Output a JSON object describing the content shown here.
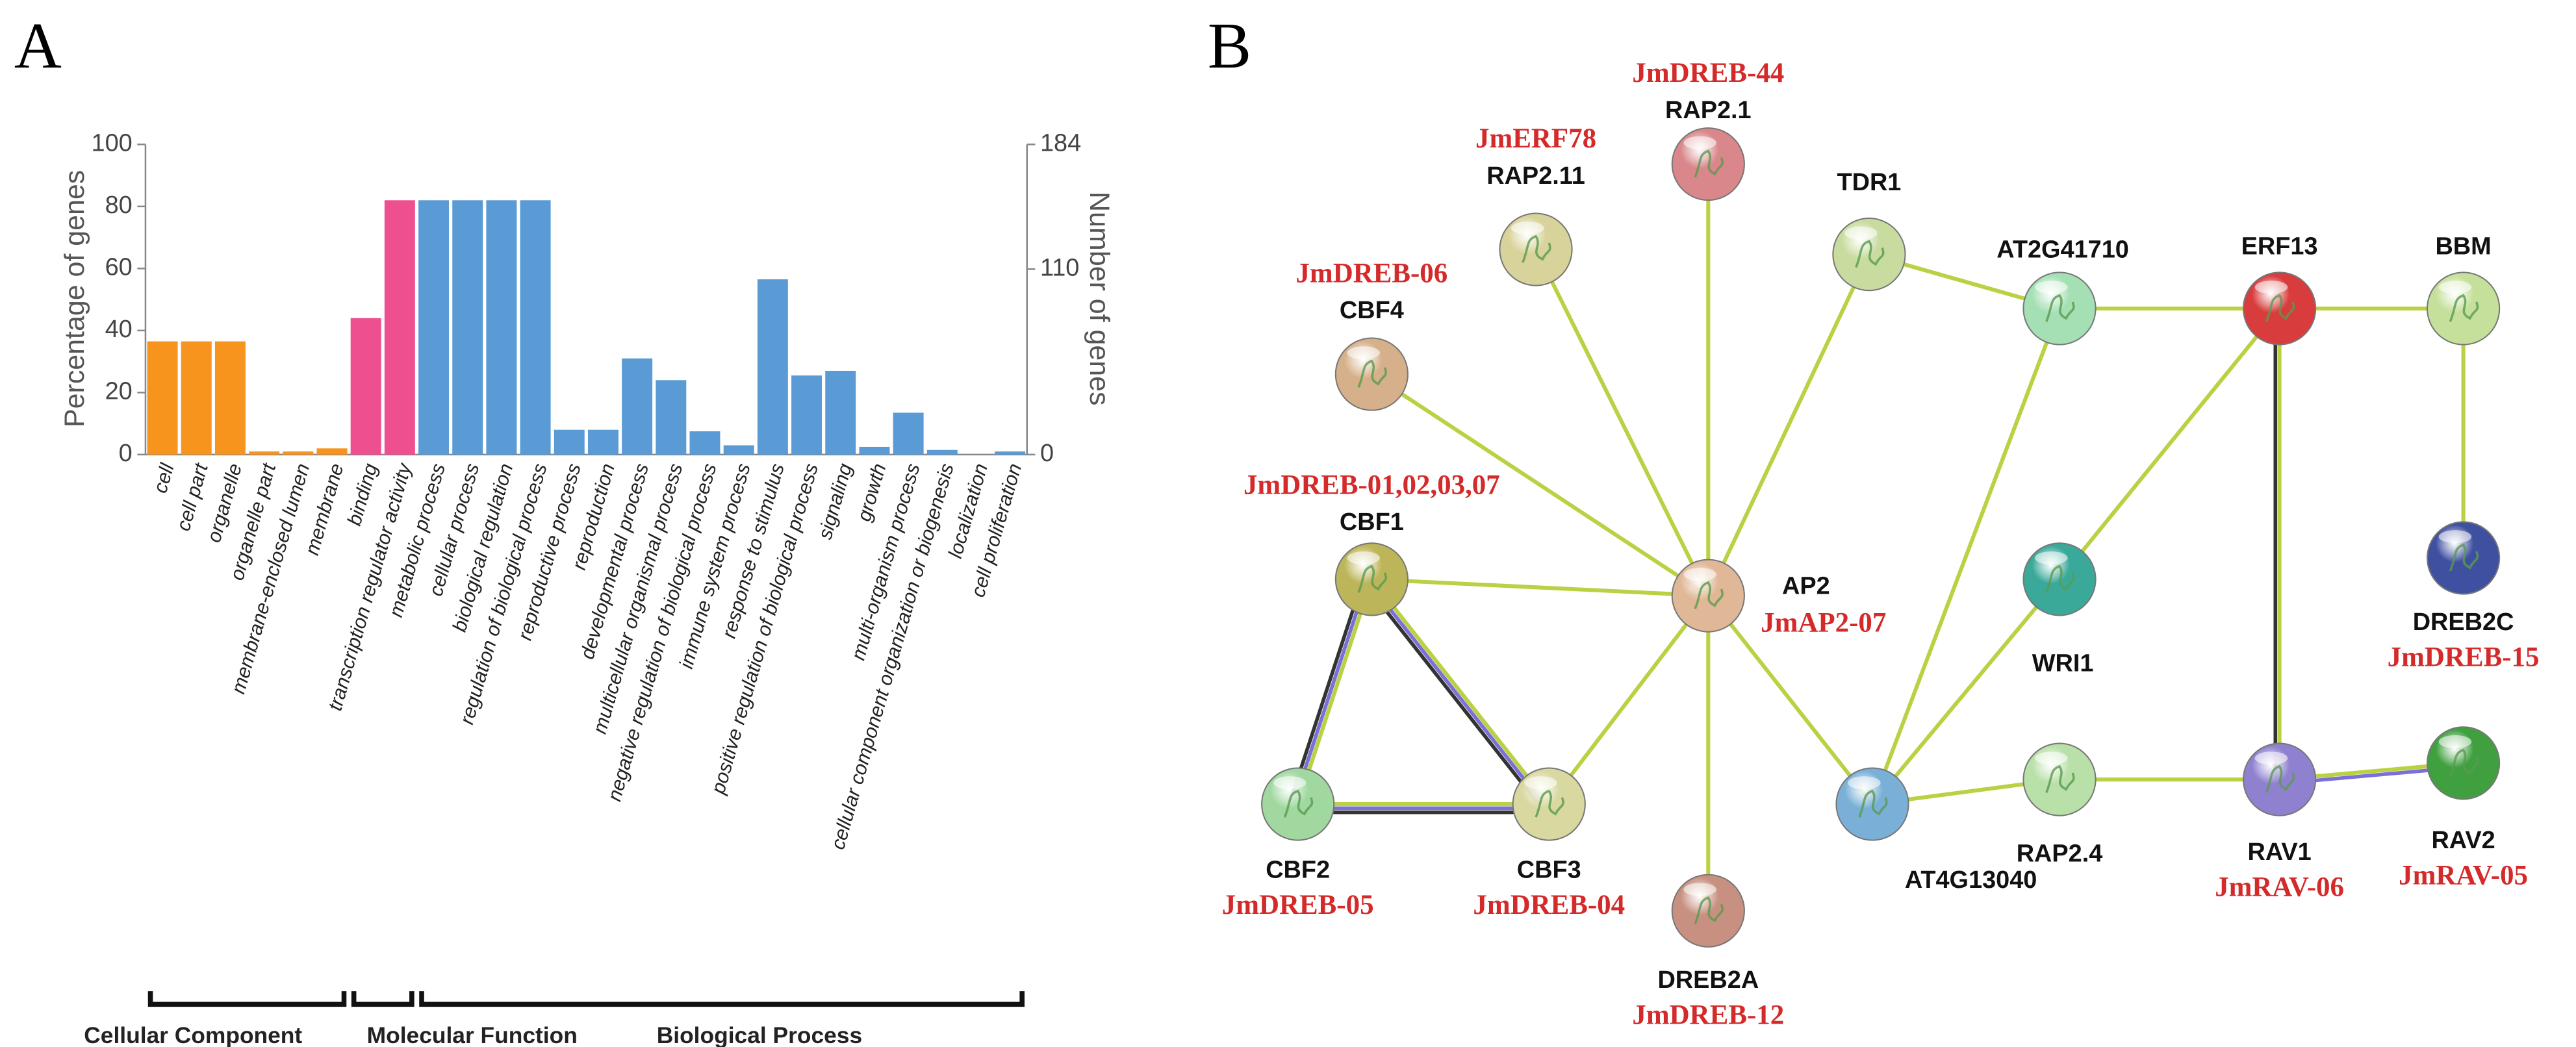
{
  "chart_data": {
    "type": "bar",
    "panel_label": "A",
    "ylabel": "Percentage of genes",
    "y2label": "Number of genes",
    "ylim": [
      0,
      100
    ],
    "yticks": [
      0,
      20,
      40,
      60,
      80,
      100
    ],
    "y2lim": [
      0,
      184
    ],
    "y2ticks": [
      0,
      110,
      184
    ],
    "categories": [
      "cell",
      "cell part",
      "organelle",
      "organelle part",
      "membrane-enclosed lumen",
      "membrane",
      "binding",
      "transcription regulator activity",
      "metabolic process",
      "cellular process",
      "biological regulation",
      "regulation of biological process",
      "reproductive process",
      "reproduction",
      "developmental process",
      "multicellular organismal process",
      "negative regulation of biological process",
      "immune system process",
      "response to stimulus",
      "positive regulation of biological process",
      "signaling",
      "growth",
      "multi-organism process",
      "cellular component organization or biogenesis",
      "localization",
      "cell proliferation"
    ],
    "series": [
      {
        "name": "Cellular Component",
        "color": "#f7941d",
        "values": [
          36.5,
          36.5,
          36.5,
          1,
          1,
          2,
          null,
          null,
          null,
          null,
          null,
          null,
          null,
          null,
          null,
          null,
          null,
          null,
          null,
          null,
          null,
          null,
          null,
          null,
          null,
          null
        ]
      },
      {
        "name": "Molecular Function",
        "color": "#ee4f8f",
        "values": [
          null,
          null,
          null,
          null,
          null,
          null,
          44,
          82,
          null,
          null,
          null,
          null,
          null,
          null,
          null,
          null,
          null,
          null,
          null,
          null,
          null,
          null,
          null,
          null,
          null,
          null
        ]
      },
      {
        "name": "Biological Process",
        "color": "#5b9bd5",
        "values": [
          null,
          null,
          null,
          null,
          null,
          null,
          null,
          null,
          82,
          82,
          82,
          82,
          8,
          8,
          31,
          24,
          7.5,
          3,
          56.5,
          25.5,
          27,
          2.5,
          13.5,
          1.5,
          0,
          1
        ]
      }
    ]
  },
  "network": {
    "panel_label": "B",
    "nodes": [
      {
        "label": "RAP2.1",
        "gene": "JmDREB-44",
        "color": "#d9878a"
      },
      {
        "label": "RAP2.11",
        "gene": "JmERF78",
        "color": "#d8d39a"
      },
      {
        "label": "CBF4",
        "gene": "JmDREB-06",
        "color": "#d6b08a"
      },
      {
        "label": "TDR1",
        "color": "#c9dca0"
      },
      {
        "label": "AT2G41710",
        "color": "#a5e0b5"
      },
      {
        "label": "ERF13",
        "color": "#d83c3c"
      },
      {
        "label": "BBM",
        "color": "#c5e09a"
      },
      {
        "label": "CBF1",
        "gene": "JmDREB-01,02,03,07",
        "color": "#bdb55a"
      },
      {
        "label": "AP2",
        "gene": "JmAP2-07",
        "color": "#e0b898"
      },
      {
        "label": "WRI1",
        "color": "#3aa99a"
      },
      {
        "label": "DREB2C",
        "gene": "JmDREB-15",
        "color": "#4050a0"
      },
      {
        "label": "CBF2",
        "gene": "JmDREB-05",
        "color": "#a0d8a0"
      },
      {
        "label": "CBF3",
        "gene": "JmDREB-04",
        "color": "#d8d8a0"
      },
      {
        "label": "DREB2A",
        "gene": "JmDREB-12",
        "color": "#c89080"
      },
      {
        "label": "AT4G13040",
        "color": "#7ab0d8"
      },
      {
        "label": "RAP2.4",
        "color": "#b8e0a8"
      },
      {
        "label": "RAV1",
        "gene": "JmRAV-06",
        "color": "#9080d0"
      },
      {
        "label": "RAV2",
        "gene": "JmRAV-05",
        "color": "#40a040"
      }
    ]
  }
}
